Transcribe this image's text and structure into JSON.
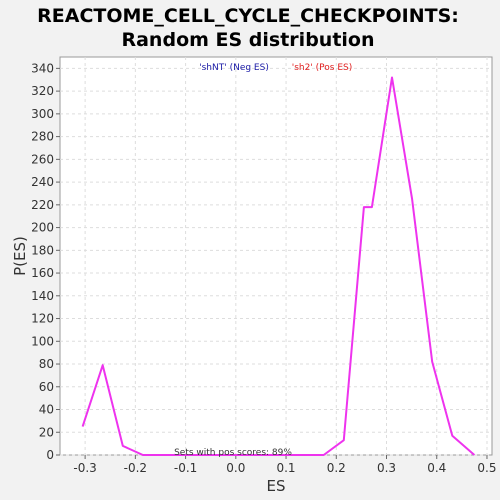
{
  "chart_data": {
    "type": "line",
    "title_lines": [
      "REACTOME_CELL_CYCLE_CHECKPOINTS:",
      "Random ES distribution"
    ],
    "xlabel": "ES",
    "ylabel": "P(ES)",
    "xlim": [
      -0.35,
      0.51
    ],
    "ylim": [
      0,
      350
    ],
    "xticks": [
      -0.3,
      -0.2,
      -0.1,
      0.0,
      0.1,
      0.2,
      0.3,
      0.4,
      0.5
    ],
    "xtick_labels": [
      "-0.3",
      "-0.2",
      "-0.1",
      "0.0",
      "0.1",
      "0.2",
      "0.3",
      "0.4",
      "0.5"
    ],
    "yticks": [
      0,
      20,
      40,
      60,
      80,
      100,
      120,
      140,
      160,
      180,
      200,
      220,
      240,
      260,
      280,
      300,
      320,
      340
    ],
    "ytick_labels": [
      "0",
      "20",
      "40",
      "60",
      "80",
      "100",
      "120",
      "140",
      "160",
      "180",
      "200",
      "220",
      "240",
      "260",
      "280",
      "300",
      "320",
      "340"
    ],
    "grid": true,
    "legend_placement": "top-center",
    "legend": [
      {
        "label": "'shNT' (Neg ES)",
        "color": "#1a1aa6"
      },
      {
        "label": "'sh2' (Pos ES)",
        "color": "#e02020"
      }
    ],
    "annotation": "Sets with pos scores: 89%",
    "series": [
      {
        "color": "#ee33ee",
        "x": [
          -0.305,
          -0.265,
          -0.225,
          -0.185,
          -0.145,
          -0.105,
          -0.065,
          -0.025,
          0.015,
          0.055,
          0.095,
          0.135,
          0.175,
          0.215,
          0.255,
          0.271,
          0.311,
          0.351,
          0.391,
          0.431,
          0.475
        ],
        "y": [
          25,
          79,
          8,
          0,
          0,
          0,
          0,
          0,
          0,
          0,
          0,
          0,
          0,
          13,
          218,
          218,
          332,
          225,
          82,
          17,
          0
        ]
      }
    ]
  }
}
